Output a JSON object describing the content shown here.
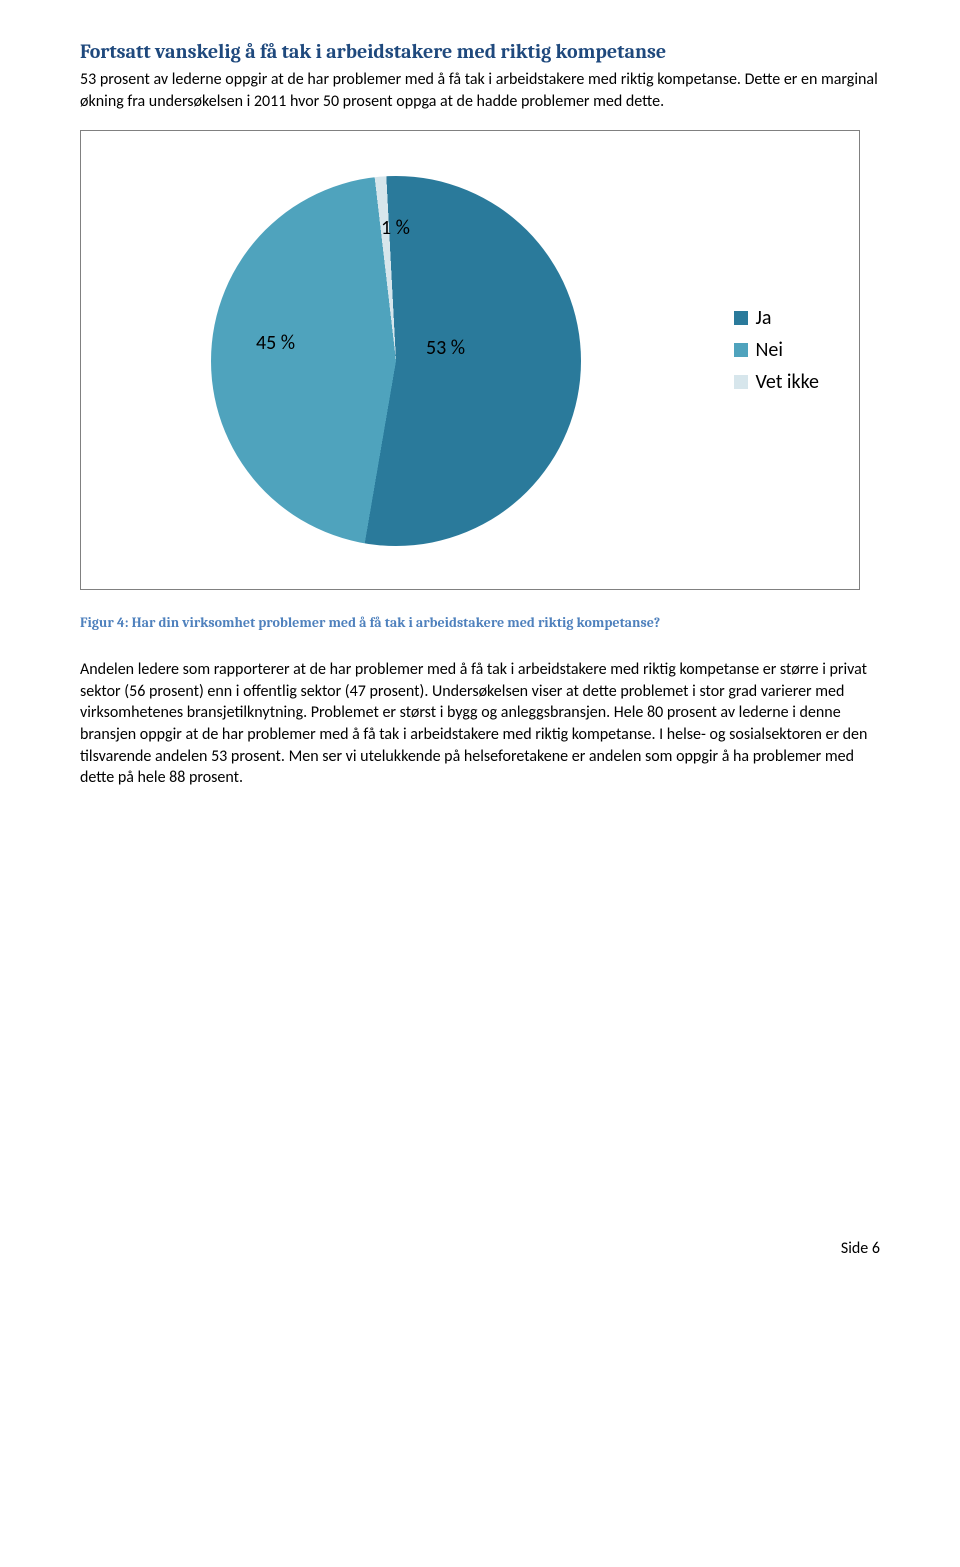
{
  "heading": "Fortsatt vanskelig å få tak i arbeidstakere med riktig kompetanse",
  "intro": "53 prosent av lederne oppgir at de har problemer med å få tak i arbeidstakere med riktig kompetanse. Dette er en marginal økning fra undersøkelsen i 2011 hvor 50 prosent oppga at de hadde problemer med dette.",
  "chart": {
    "type": "pie",
    "slices": [
      {
        "label": "Ja",
        "value": 53,
        "color": "#2a7a9b",
        "text": "53 %"
      },
      {
        "label": "Nei",
        "value": 45,
        "color": "#4fa3bd",
        "text": "45 %"
      },
      {
        "label": "Vet ikke",
        "value": 1,
        "color": "#d7e6ec",
        "text": "1 %"
      }
    ],
    "background": "#ffffff",
    "border": "#808080",
    "legend_fontsize": 20,
    "label_fontsize": 20
  },
  "caption": "Figur 4: Har din virksomhet problemer med å få tak i arbeidstakere med riktig kompetanse?",
  "body": "Andelen ledere som rapporterer at de har problemer med å få tak i arbeidstakere med riktig kompetanse er større i privat sektor (56 prosent) enn i offentlig sektor (47 prosent). Undersøkelsen viser at dette problemet i stor grad varierer med virksomhetenes bransjetilknytning. Problemet er størst i bygg og anleggsbransjen. Hele 80 prosent av lederne i denne bransjen oppgir at de har problemer med å få tak i arbeidstakere med riktig kompetanse. I helse- og sosialsektoren er den tilsvarende andelen 53 prosent. Men ser vi utelukkende på helseforetakene er andelen som oppgir å ha problemer med dette på hele 88 prosent.",
  "page_number": "Side 6"
}
